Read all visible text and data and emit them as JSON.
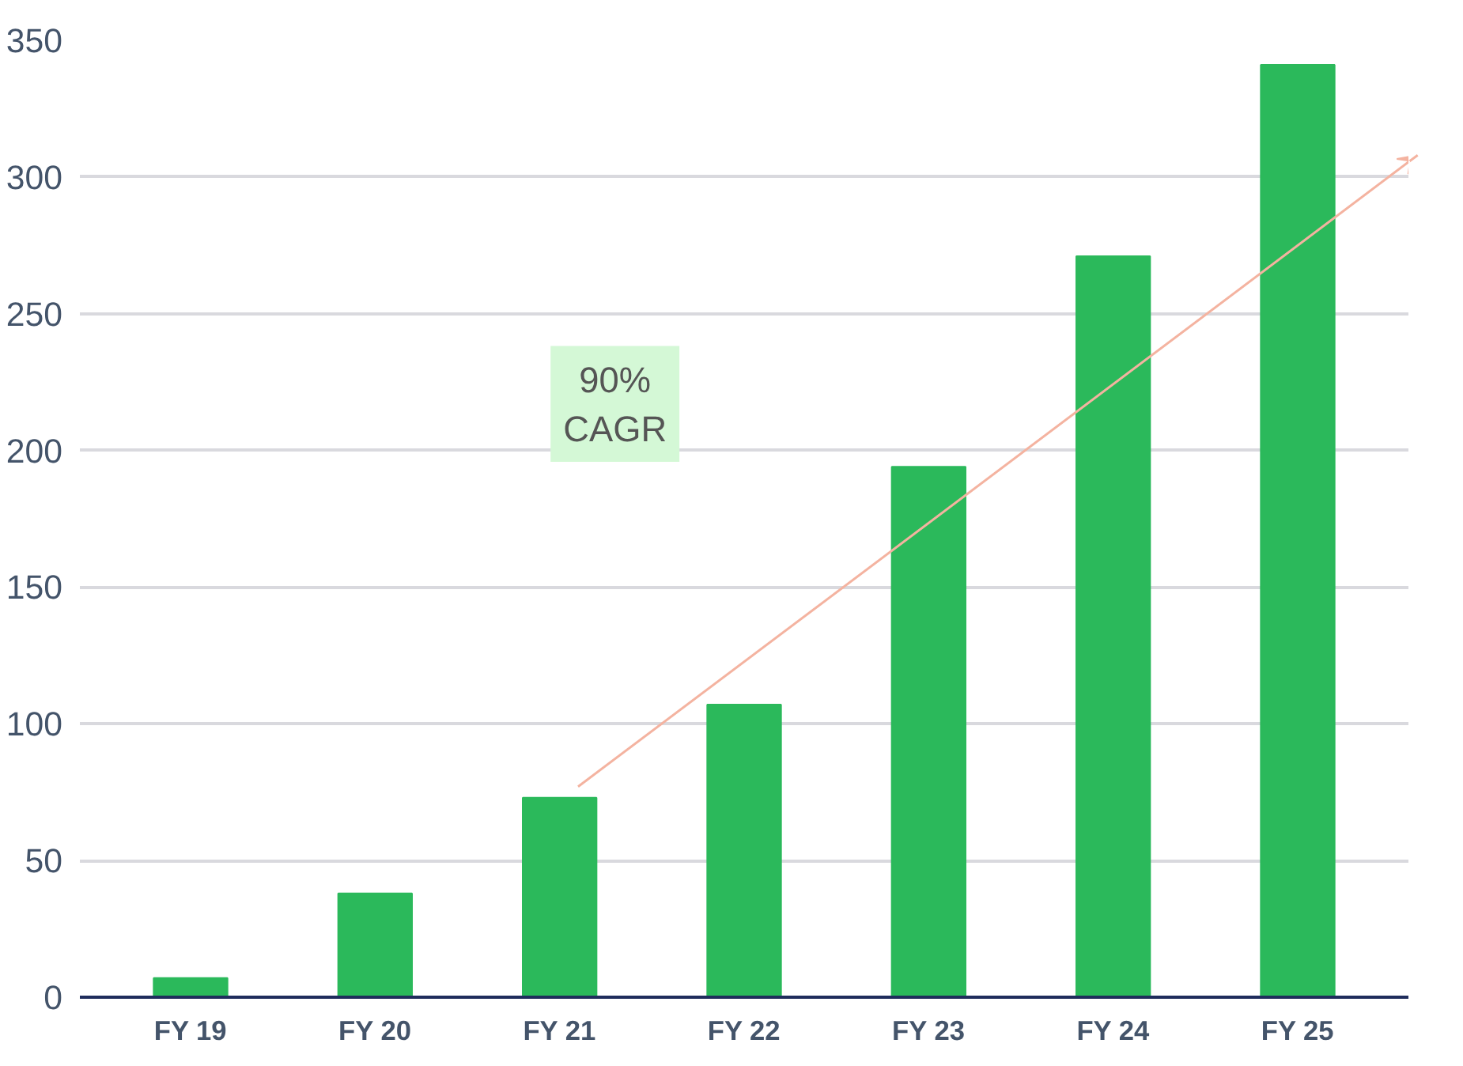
{
  "chart_data": {
    "type": "bar",
    "categories": [
      "FY 19",
      "FY 20",
      "FY 21",
      "FY 22",
      "FY 23",
      "FY 24",
      "FY 25"
    ],
    "values": [
      7,
      38,
      73,
      107,
      194,
      271,
      341
    ],
    "color": "#2bb95b",
    "ylim": [
      0,
      350
    ],
    "yticks": [
      0,
      50,
      100,
      150,
      200,
      250,
      300,
      350
    ],
    "grid": "y",
    "annotations": [
      "90%\nCAGR"
    ]
  }
}
